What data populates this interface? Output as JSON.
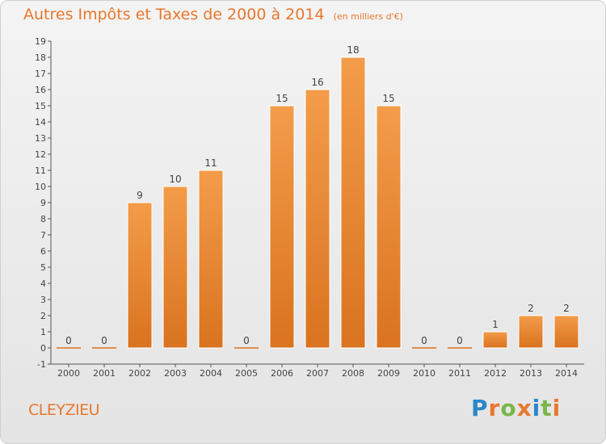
{
  "header": {
    "title": "Autres Impôts et Taxes de 2000 à 2014",
    "subtitle": "(en milliers d'€)"
  },
  "footer": {
    "commune": "CLEYZIEU",
    "logo_letters": [
      "P",
      "r",
      "o",
      "x",
      "i",
      "t",
      "i"
    ],
    "logo_colors": [
      "#2a87c8",
      "#e8772e",
      "#7ab648",
      "#e8772e",
      "#2a87c8",
      "#7ab648",
      "#e8772e"
    ]
  },
  "chart_data": {
    "type": "bar",
    "title": "Autres Impôts et Taxes de 2000 à 2014",
    "subtitle": "(en milliers d'€)",
    "xlabel": "",
    "ylabel": "",
    "categories": [
      "2000",
      "2001",
      "2002",
      "2003",
      "2004",
      "2005",
      "2006",
      "2007",
      "2008",
      "2009",
      "2010",
      "2011",
      "2012",
      "2013",
      "2014"
    ],
    "values": [
      0,
      0,
      9,
      10,
      11,
      0,
      15,
      16,
      18,
      15,
      0,
      0,
      1,
      2,
      2
    ],
    "value_labels": [
      "0",
      "0",
      "9",
      "10",
      "11",
      "0",
      "15",
      "16",
      "18",
      "15",
      "0",
      "0",
      "1",
      "2",
      "2"
    ],
    "yticks": [
      "-1",
      "0",
      "1",
      "2",
      "3",
      "4",
      "5",
      "6",
      "7",
      "8",
      "9",
      "10",
      "11",
      "12",
      "13",
      "14",
      "15",
      "16",
      "17",
      "18",
      "19"
    ],
    "ylim": [
      -1,
      19
    ],
    "grid": false,
    "legend": "none",
    "bar_color": "#f39c4a",
    "bar_color_dark": "#d9731f"
  }
}
